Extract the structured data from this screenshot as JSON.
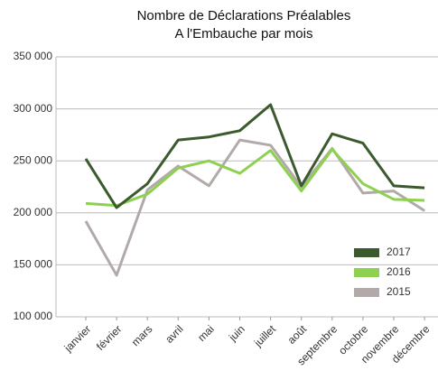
{
  "chart_data": {
    "type": "line",
    "title": [
      "Nombre de Déclarations Préalables",
      "A l'Embauche par mois"
    ],
    "categories": [
      "janvier",
      "février",
      "mars",
      "avril",
      "mai",
      "juin",
      "juillet",
      "août",
      "septembre",
      "octobre",
      "novembre",
      "décembre"
    ],
    "series": [
      {
        "name": "2017",
        "color": "#3b5a2e",
        "values": [
          252000,
          205000,
          228000,
          270000,
          273000,
          279000,
          304000,
          226000,
          276000,
          267000,
          226000,
          224000
        ]
      },
      {
        "name": "2016",
        "color": "#8ed150",
        "values": [
          209000,
          207000,
          218000,
          243000,
          250000,
          238000,
          260000,
          221000,
          261000,
          228000,
          213000,
          212000
        ]
      },
      {
        "name": "2015",
        "color": "#b2aaa9",
        "values": [
          192000,
          140000,
          222000,
          245000,
          226000,
          270000,
          265000,
          225000,
          262000,
          219000,
          221000,
          202000
        ]
      }
    ],
    "ylim": [
      100000,
      350000
    ],
    "yticks": [
      {
        "value": 100000,
        "label": "100 000"
      },
      {
        "value": 150000,
        "label": "150 000"
      },
      {
        "value": 200000,
        "label": "200 000"
      },
      {
        "value": 250000,
        "label": "250 000"
      },
      {
        "value": 300000,
        "label": "300 000"
      },
      {
        "value": 350000,
        "label": "350 000"
      }
    ],
    "grid": true,
    "legend": "lower-right"
  }
}
